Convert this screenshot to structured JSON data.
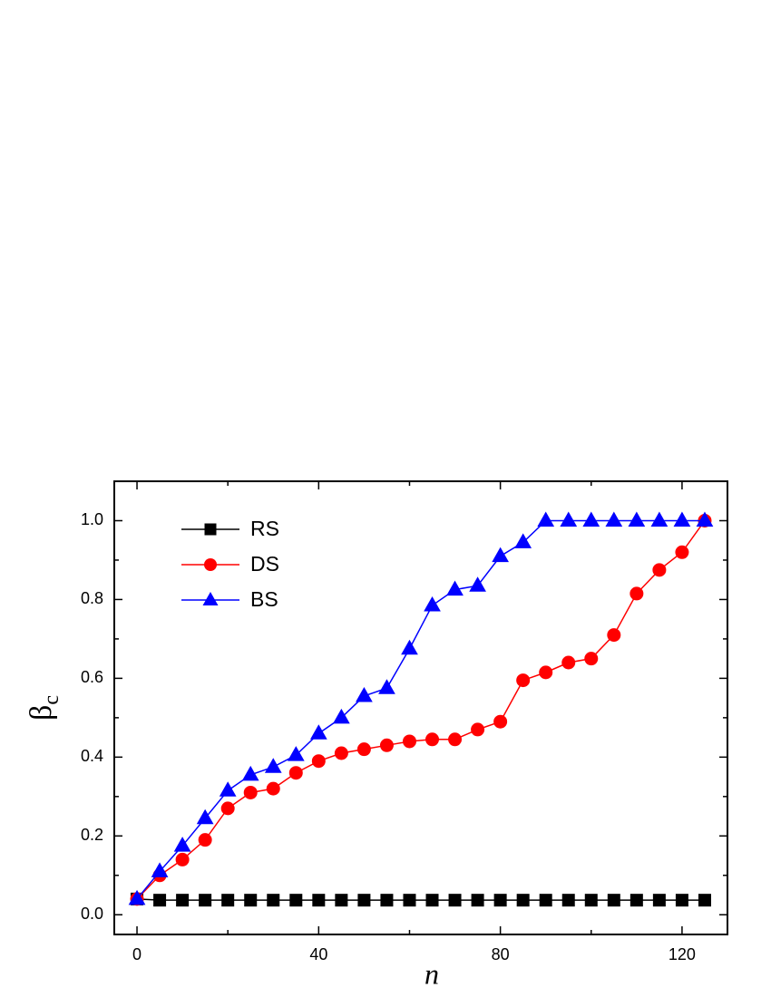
{
  "chart_data": {
    "type": "line",
    "xlabel": "n",
    "ylabel": {
      "symbol": "β",
      "subscript": "c"
    },
    "x": [
      0,
      5,
      10,
      15,
      20,
      25,
      30,
      35,
      40,
      45,
      50,
      55,
      60,
      65,
      70,
      75,
      80,
      85,
      90,
      95,
      100,
      105,
      110,
      115,
      120,
      125
    ],
    "series": [
      {
        "name": "RS",
        "color": "#000000",
        "marker": "square",
        "values": [
          0.04,
          0.037,
          0.037,
          0.037,
          0.037,
          0.037,
          0.037,
          0.037,
          0.037,
          0.037,
          0.037,
          0.037,
          0.037,
          0.037,
          0.037,
          0.037,
          0.037,
          0.037,
          0.037,
          0.037,
          0.037,
          0.037,
          0.037,
          0.037,
          0.037,
          0.037
        ]
      },
      {
        "name": "DS",
        "color": "#ff0000",
        "marker": "circle",
        "values": [
          0.04,
          0.1,
          0.14,
          0.19,
          0.27,
          0.31,
          0.32,
          0.36,
          0.39,
          0.41,
          0.42,
          0.43,
          0.44,
          0.445,
          0.445,
          0.47,
          0.49,
          0.595,
          0.615,
          0.64,
          0.65,
          0.71,
          0.815,
          0.875,
          0.92,
          1.0
        ]
      },
      {
        "name": "BS",
        "color": "#0000ff",
        "marker": "triangle",
        "values": [
          0.04,
          0.11,
          0.175,
          0.245,
          0.315,
          0.355,
          0.375,
          0.405,
          0.46,
          0.5,
          0.555,
          0.575,
          0.675,
          0.785,
          0.825,
          0.835,
          0.91,
          0.945,
          1.0,
          1.0,
          1.0,
          1.0,
          1.0,
          1.0,
          1.0,
          1.0
        ]
      }
    ],
    "xlim": [
      -5,
      130
    ],
    "ylim": [
      -0.05,
      1.1
    ],
    "xticks": [
      0,
      40,
      80,
      120
    ],
    "xminorticks": [
      20,
      60,
      100
    ],
    "yticks": [
      {
        "value": 0,
        "label": "0.0"
      },
      0.2,
      0.4,
      0.6,
      0.8,
      {
        "value": 1,
        "label": "1.0"
      }
    ],
    "yminorticks": [
      0.1,
      0.3,
      0.5,
      0.7,
      0.9
    ],
    "legend": "upper left"
  }
}
